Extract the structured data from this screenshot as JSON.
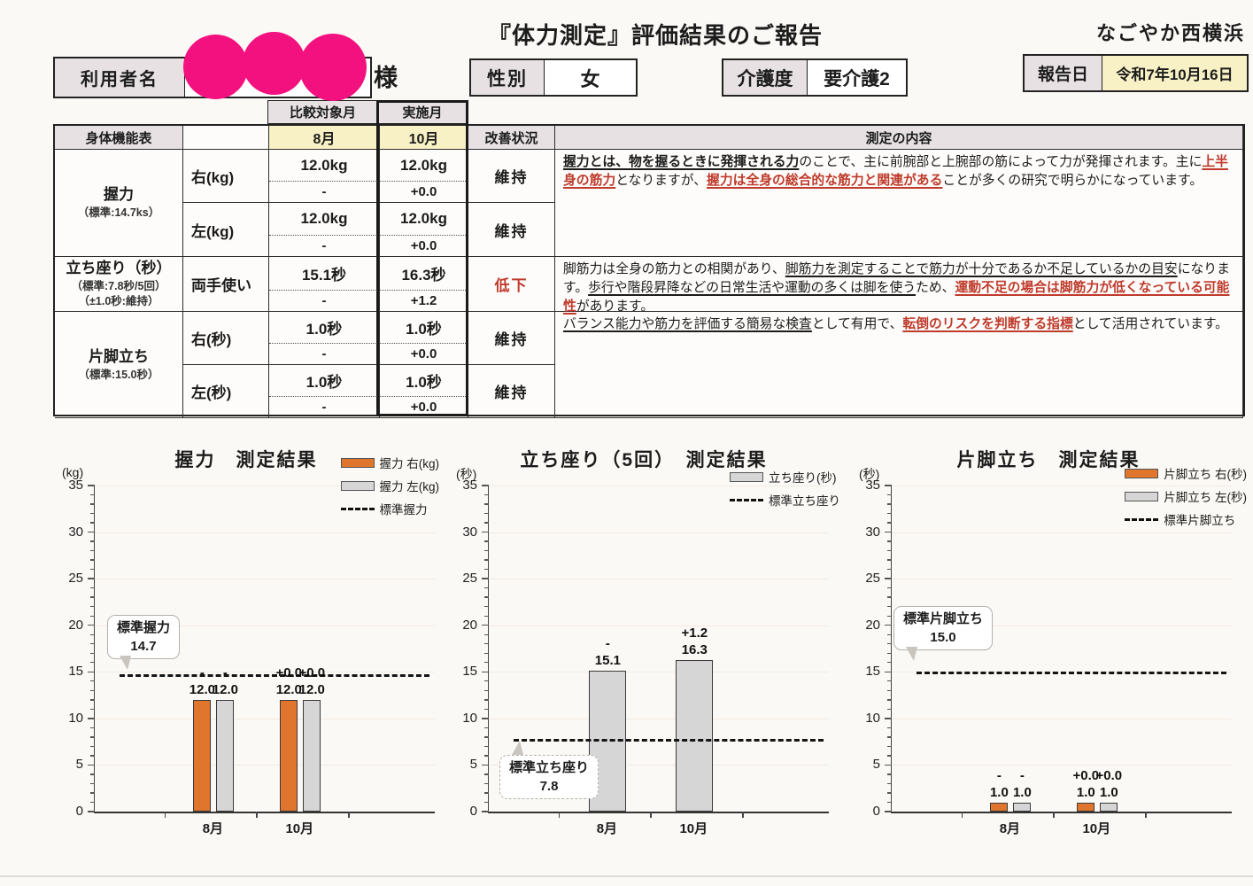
{
  "colors": {
    "redaction_pink": "#f3117f",
    "bar_orange": "#e0762d",
    "bar_gray": "#d6d6d6",
    "header_gray": "#e7e1e3",
    "highlight_yellow": "#f8f1c5",
    "text_red": "#bf3a2b"
  },
  "page": {
    "title": "『体力測定』評価結果のご報告",
    "org_name": "なごやか西横浜",
    "report_date_label": "報告日",
    "report_date_value": "令和7年10月16日",
    "user_label": "利用者名",
    "user_suffix": "様",
    "gender_label": "性別",
    "gender_value": "女",
    "care_level_label": "介護度",
    "care_level_value": "要介護2"
  },
  "table": {
    "compare_month_header": "比較対象月",
    "exec_month_header": "実施月",
    "function_table_header": "身体機能表",
    "compare_month": "8月",
    "exec_month": "10月",
    "status_header": "改善状況",
    "content_header": "測定の内容",
    "groups": [
      {
        "name": "握力",
        "standard_notes": [
          "（標準:14.7ks）"
        ],
        "rows": [
          {
            "label": "右(kg)",
            "prev": "12.0kg",
            "curr": "12.0kg",
            "prev_delta": "-",
            "curr_delta": "+0.0",
            "status": "維持",
            "status_is_decline": false
          },
          {
            "label": "左(kg)",
            "prev": "12.0kg",
            "curr": "12.0kg",
            "prev_delta": "-",
            "curr_delta": "+0.0",
            "status": "維持",
            "status_is_decline": false
          }
        ],
        "description": [
          {
            "t": "握力とは、物を握るときに発揮される力",
            "b": true,
            "u": true
          },
          {
            "t": "のことで、主に前腕部と上腕部の筋によって力が発揮されます。主に"
          },
          {
            "t": "上半身の筋力",
            "r": true,
            "u": true
          },
          {
            "t": "となりますが、"
          },
          {
            "t": "握力は全身の総合的な筋力と関連がある",
            "r": true,
            "u": true
          },
          {
            "t": "ことが多くの研究で明らかになっています。"
          }
        ]
      },
      {
        "name": "立ち座り（秒）",
        "standard_notes": [
          "（標準:7.8秒/5回）",
          "（±1.0秒:維持）"
        ],
        "rows": [
          {
            "label": "両手使い",
            "prev": "15.1秒",
            "curr": "16.3秒",
            "prev_delta": "-",
            "curr_delta": "+1.2",
            "status": "低下",
            "status_is_decline": true
          }
        ],
        "description": [
          {
            "t": "脚筋力は全身の筋力との相関があり、"
          },
          {
            "t": "脚筋力を測定することで筋力が十分であるか不足しているかの目安",
            "u": true
          },
          {
            "t": "になります。"
          },
          {
            "t": "歩行や階段昇降などの日常生活や運動の多くは脚を使う",
            "u": true
          },
          {
            "t": "ため、"
          },
          {
            "t": "運動不足の場合は脚筋力が低くなっている可能性",
            "r": true,
            "u": true
          },
          {
            "t": "があります。"
          }
        ]
      },
      {
        "name": "片脚立ち",
        "standard_notes": [
          "（標準:15.0秒）"
        ],
        "rows": [
          {
            "label": "右(秒)",
            "prev": "1.0秒",
            "curr": "1.0秒",
            "prev_delta": "-",
            "curr_delta": "+0.0",
            "status": "維持",
            "status_is_decline": false
          },
          {
            "label": "左(秒)",
            "prev": "1.0秒",
            "curr": "1.0秒",
            "prev_delta": "-",
            "curr_delta": "+0.0",
            "status": "維持",
            "status_is_decline": false
          }
        ],
        "description": [
          {
            "t": "バランス能力や筋力を評価する簡易な検査",
            "u": true
          },
          {
            "t": "として有用で、"
          },
          {
            "t": "転倒のリスクを判断する指標",
            "r": true,
            "u": true
          },
          {
            "t": "として活用されています。"
          }
        ]
      }
    ]
  },
  "chart_data": [
    {
      "type": "bar",
      "title": "握力　測定結果",
      "unit_label": "(kg)",
      "categories": [
        "8月",
        "10月"
      ],
      "series": [
        {
          "name": "握力 右(kg)",
          "color": "orange",
          "values": [
            12.0,
            12.0
          ],
          "value_labels": [
            "12.0",
            "12.0"
          ],
          "delta_labels": [
            "-",
            "+0.0"
          ]
        },
        {
          "name": "握力 左(kg)",
          "color": "gray",
          "values": [
            12.0,
            12.0
          ],
          "value_labels": [
            "12.0",
            "12.0"
          ],
          "delta_labels": [
            "-",
            "+0.0"
          ]
        }
      ],
      "standard_line": {
        "label": "標準握力",
        "value": 14.7,
        "callout": [
          "標準握力",
          "14.7"
        ],
        "callout_pos": "mid-left",
        "callout_style": "solid"
      },
      "ylim": [
        0,
        35
      ],
      "ytick_step": 5,
      "grid": true,
      "legend_position": "top-right"
    },
    {
      "type": "bar",
      "title": "立ち座り（5回）　測定結果",
      "unit_label": "(秒)",
      "categories": [
        "8月",
        "10月"
      ],
      "series": [
        {
          "name": "立ち座り(秒)",
          "color": "gray",
          "values": [
            15.1,
            16.3
          ],
          "value_labels": [
            "15.1",
            "16.3"
          ],
          "delta_labels": [
            "-",
            "+1.2"
          ]
        }
      ],
      "standard_line": {
        "label": "標準立ち座り",
        "value": 7.8,
        "callout": [
          "標準立ち座り",
          "7.8"
        ],
        "callout_pos": "bottom-left",
        "callout_style": "dashed"
      },
      "ylim": [
        0,
        35
      ],
      "ytick_step": 5,
      "grid": true,
      "legend_position": "top-right"
    },
    {
      "type": "bar",
      "title": "片脚立ち　測定結果",
      "unit_label": "(秒)",
      "categories": [
        "8月",
        "10月"
      ],
      "series": [
        {
          "name": "片脚立ち 右(秒)",
          "color": "orange",
          "values": [
            1.0,
            1.0
          ],
          "value_labels": [
            "1.0",
            "1.0"
          ],
          "delta_labels": [
            "-",
            "+0.0"
          ]
        },
        {
          "name": "片脚立ち 左(秒)",
          "color": "gray",
          "values": [
            1.0,
            1.0
          ],
          "value_labels": [
            "1.0",
            "1.0"
          ],
          "delta_labels": [
            "-",
            "+0.0"
          ]
        }
      ],
      "standard_line": {
        "label": "標準片脚立ち",
        "value": 15.0,
        "callout": [
          "標準片脚立ち",
          "15.0"
        ],
        "callout_pos": "top-left",
        "callout_style": "solid"
      },
      "ylim": [
        0,
        35
      ],
      "ytick_step": 5,
      "grid": true,
      "legend_position": "top-right"
    }
  ]
}
